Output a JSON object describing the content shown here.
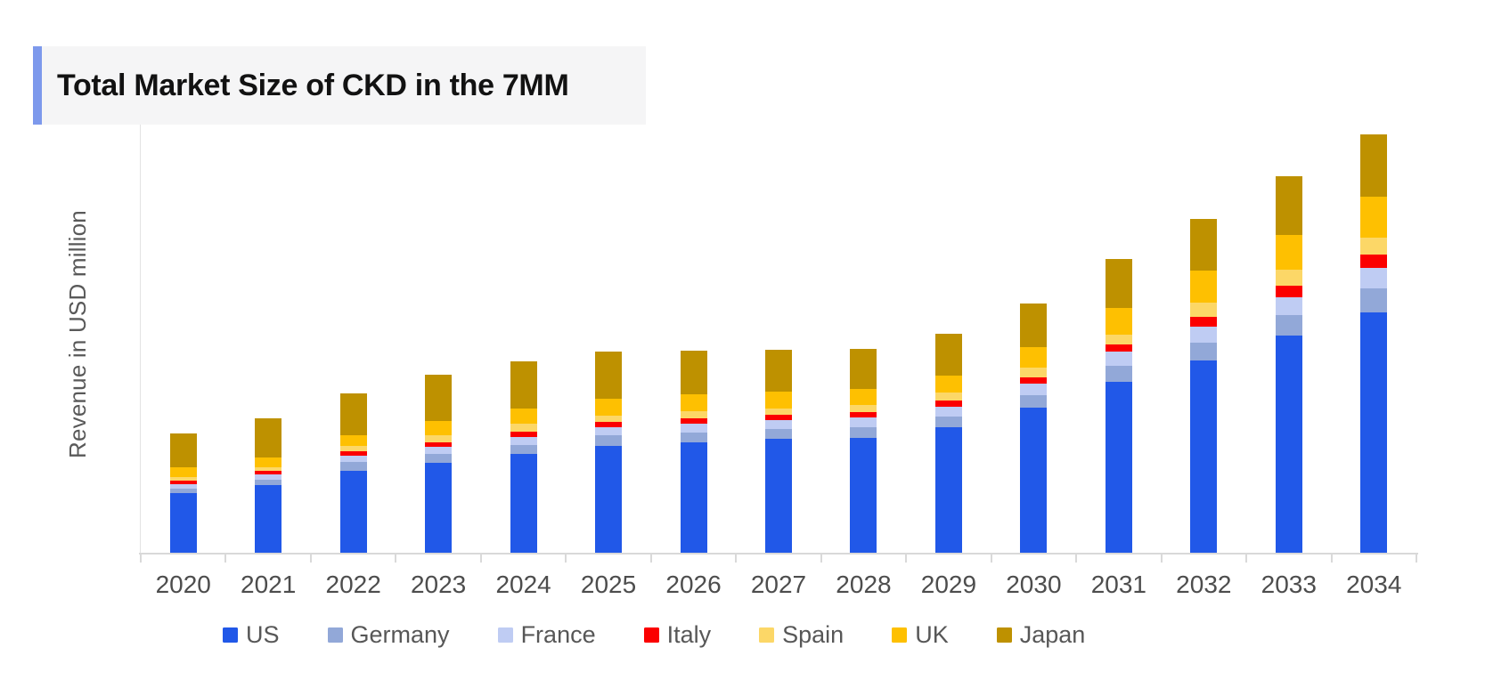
{
  "header": {
    "title": "Total Market Size of CKD in the 7MM",
    "accent_color": "#7d99ec",
    "background_color": "#f5f5f6"
  },
  "chart_data": {
    "type": "bar",
    "stacked": true,
    "title": "Total Market Size of CKD in the 7MM",
    "xlabel": "",
    "ylabel": "Revenue in USD million",
    "categories": [
      "2020",
      "2021",
      "2022",
      "2023",
      "2024",
      "2025",
      "2026",
      "2027",
      "2028",
      "2029",
      "2030",
      "2031",
      "2032",
      "2033",
      "2034"
    ],
    "series": [
      {
        "name": "US",
        "color": "#2158e8",
        "values": [
          670,
          760,
          920,
          1010,
          1110,
          1200,
          1240,
          1280,
          1290,
          1410,
          1630,
          1920,
          2160,
          2440,
          2700
        ]
      },
      {
        "name": "Germany",
        "color": "#92a8d8",
        "values": [
          50,
          60,
          100,
          100,
          100,
          120,
          110,
          110,
          120,
          120,
          140,
          180,
          200,
          230,
          270
        ]
      },
      {
        "name": "France",
        "color": "#bfccf3",
        "values": [
          50,
          60,
          70,
          80,
          90,
          90,
          100,
          100,
          110,
          110,
          130,
          160,
          180,
          200,
          230
        ]
      },
      {
        "name": "Italy",
        "color": "#fb0000",
        "values": [
          40,
          40,
          50,
          50,
          60,
          60,
          60,
          60,
          60,
          70,
          70,
          80,
          110,
          130,
          150
        ]
      },
      {
        "name": "Spain",
        "color": "#fcd767",
        "values": [
          40,
          40,
          60,
          80,
          90,
          70,
          80,
          70,
          80,
          90,
          110,
          110,
          160,
          180,
          190
        ]
      },
      {
        "name": "UK",
        "color": "#fec001",
        "values": [
          110,
          110,
          120,
          160,
          170,
          190,
          190,
          190,
          180,
          190,
          230,
          300,
          360,
          390,
          460
        ]
      },
      {
        "name": "Japan",
        "color": "#be9100",
        "values": [
          380,
          440,
          470,
          520,
          530,
          530,
          490,
          470,
          450,
          470,
          490,
          550,
          580,
          660,
          700
        ]
      }
    ],
    "totals": [
      1340,
      1510,
      1790,
      2000,
      2150,
      2260,
      2270,
      2280,
      2290,
      2460,
      2800,
      3300,
      3750,
      4230,
      4700
    ],
    "ylim": [
      0,
      4910
    ],
    "y_axis_tick_labels_visible": false,
    "grid": false,
    "axis_color": "#d9d9d9",
    "label_color": "#4d4d4d",
    "legend_position": "bottom"
  }
}
